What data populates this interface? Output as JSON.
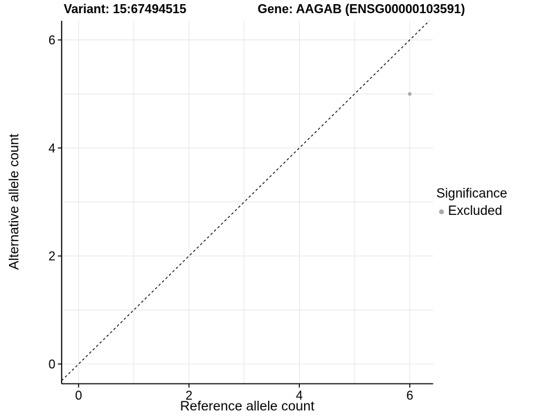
{
  "colors": {
    "background": "#ffffff",
    "grid": "#e8e8e8",
    "axis": "#000000",
    "text": "#000000",
    "excluded_point": "#aaaaaa"
  },
  "chart_data": {
    "type": "scatter",
    "title_left": "Variant: 15:67494515",
    "title_right": "Gene: AAGAB (ENSG00000103591)",
    "xlabel": "Reference allele count",
    "ylabel": "Alternative allele count",
    "xlim": [
      -0.31,
      6.42
    ],
    "ylim": [
      -0.36,
      6.36
    ],
    "x_ticks": [
      0,
      2,
      4,
      6
    ],
    "y_ticks": [
      0,
      2,
      4,
      6
    ],
    "grid": true,
    "grid_interval": 1,
    "series": [
      {
        "name": "Excluded",
        "color": "#aaaaaa",
        "points": [
          {
            "x": 6,
            "y": 5
          }
        ]
      }
    ],
    "reference_line": {
      "type": "identity",
      "slope": 1,
      "intercept": 0,
      "linetype": "dashed",
      "color": "#000000"
    },
    "legend": {
      "title": "Significance",
      "position": "right-middle",
      "entries": [
        {
          "label": "Excluded",
          "color": "#aaaaaa"
        }
      ]
    }
  }
}
